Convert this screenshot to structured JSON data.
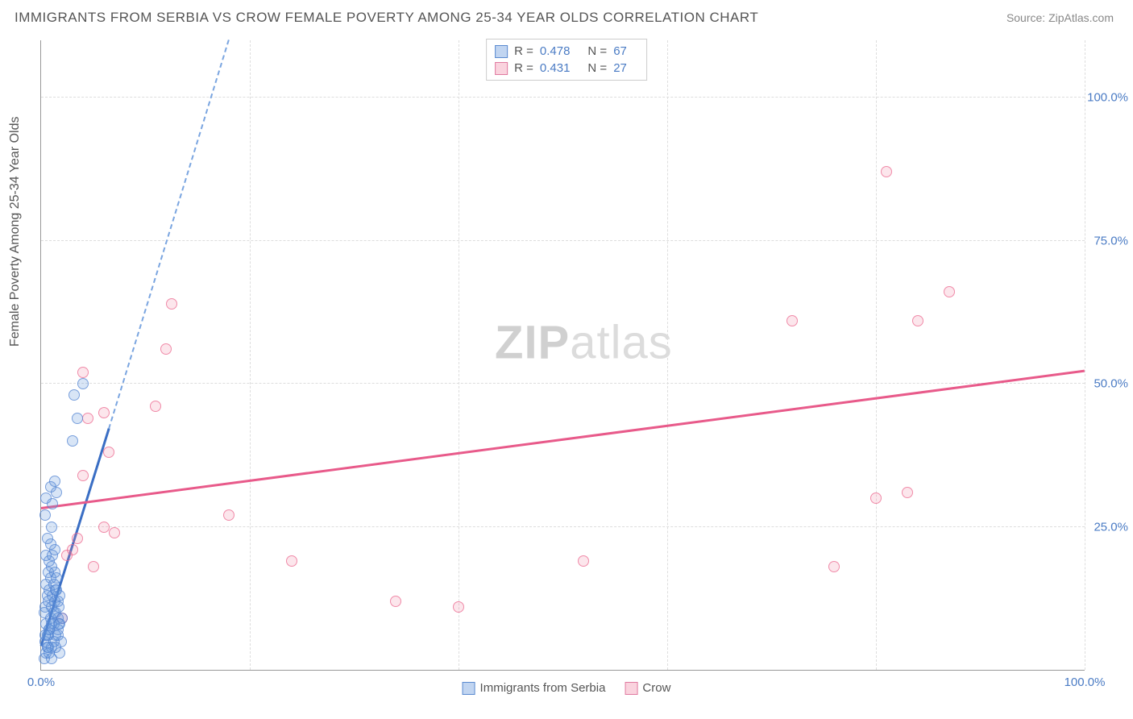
{
  "title": "IMMIGRANTS FROM SERBIA VS CROW FEMALE POVERTY AMONG 25-34 YEAR OLDS CORRELATION CHART",
  "source": "Source: ZipAtlas.com",
  "y_axis_label": "Female Poverty Among 25-34 Year Olds",
  "watermark_a": "ZIP",
  "watermark_b": "atlas",
  "chart": {
    "type": "scatter",
    "xlim": [
      0,
      100
    ],
    "ylim": [
      0,
      110
    ],
    "x_ticks": [
      0,
      20,
      40,
      60,
      80,
      100
    ],
    "y_ticks": [
      25,
      50,
      75,
      100
    ],
    "y_tick_labels": [
      "25.0%",
      "50.0%",
      "75.0%",
      "100.0%"
    ],
    "x_tick_labels_shown": [
      "0.0%",
      "100.0%"
    ],
    "grid_color": "#dddddd",
    "axis_color": "#999999",
    "background_color": "#ffffff",
    "label_color": "#4a7bc4",
    "title_fontsize": 17,
    "label_fontsize": 15
  },
  "legend_top": {
    "s1": {
      "r_label": "R =",
      "r": "0.478",
      "n_label": "N =",
      "n": "67",
      "color": "#5a8ad0",
      "fill": "rgba(100,150,220,0.4)"
    },
    "s2": {
      "r_label": "R =",
      "r": "0.431",
      "n_label": "N =",
      "n": "27",
      "color": "#e07aa0",
      "fill": "rgba(240,130,160,0.35)"
    }
  },
  "legend_bottom": {
    "s1": {
      "label": "Immigrants from Serbia",
      "color": "#5a8ad0",
      "fill": "rgba(100,150,220,0.4)"
    },
    "s2": {
      "label": "Crow",
      "color": "#e07aa0",
      "fill": "rgba(240,130,160,0.35)"
    }
  },
  "series": {
    "blue": {
      "name": "Immigrants from Serbia",
      "marker_color": "rgba(80,130,210,0.7)",
      "fill_color": "rgba(100,150,220,0.25)",
      "trend_color": "#3a6ec4",
      "trend_dash_color": "#7aa5e0",
      "trend": {
        "x1": 0,
        "y1": 4,
        "x2": 6.5,
        "y2": 42
      },
      "trend_dash": {
        "x1": 6.5,
        "y1": 42,
        "x2": 18,
        "y2": 110
      },
      "points": [
        [
          0.3,
          2
        ],
        [
          0.5,
          3
        ],
        [
          0.7,
          4
        ],
        [
          0.4,
          5
        ],
        [
          0.6,
          6
        ],
        [
          0.8,
          7
        ],
        [
          1.0,
          4
        ],
        [
          0.5,
          8
        ],
        [
          0.9,
          9
        ],
        [
          1.2,
          10
        ],
        [
          0.4,
          11
        ],
        [
          0.7,
          12
        ],
        [
          1.0,
          11
        ],
        [
          1.3,
          12
        ],
        [
          0.6,
          13
        ],
        [
          1.1,
          13
        ],
        [
          0.8,
          14
        ],
        [
          1.4,
          14
        ],
        [
          0.5,
          15
        ],
        [
          1.2,
          15
        ],
        [
          0.9,
          16
        ],
        [
          1.5,
          16
        ],
        [
          0.7,
          17
        ],
        [
          1.3,
          17
        ],
        [
          1.0,
          18
        ],
        [
          1.6,
          9
        ],
        [
          0.8,
          19
        ],
        [
          1.4,
          10
        ],
        [
          1.1,
          20
        ],
        [
          1.7,
          11
        ],
        [
          0.5,
          20
        ],
        [
          1.3,
          21
        ],
        [
          0.9,
          22
        ],
        [
          1.6,
          12
        ],
        [
          1.2,
          8
        ],
        [
          1.8,
          13
        ],
        [
          0.6,
          23
        ],
        [
          1.5,
          14
        ],
        [
          1.0,
          25
        ],
        [
          1.9,
          5
        ],
        [
          0.4,
          27
        ],
        [
          1.4,
          6
        ],
        [
          0.8,
          7
        ],
        [
          1.7,
          8
        ],
        [
          1.1,
          29
        ],
        [
          0.5,
          30
        ],
        [
          1.5,
          31
        ],
        [
          0.9,
          32
        ],
        [
          1.8,
          3
        ],
        [
          1.3,
          33
        ],
        [
          0.7,
          6
        ],
        [
          1.6,
          7
        ],
        [
          1.0,
          8
        ],
        [
          2.0,
          9
        ],
        [
          3.0,
          40
        ],
        [
          3.2,
          48
        ],
        [
          4.0,
          50
        ],
        [
          3.5,
          44
        ],
        [
          0.3,
          10
        ],
        [
          0.4,
          6
        ],
        [
          0.6,
          4
        ],
        [
          0.8,
          3
        ],
        [
          1.0,
          2
        ],
        [
          1.2,
          5
        ],
        [
          1.4,
          4
        ],
        [
          1.6,
          6
        ],
        [
          1.8,
          8
        ]
      ]
    },
    "pink": {
      "name": "Crow",
      "marker_color": "rgba(235,100,140,0.7)",
      "fill_color": "rgba(240,130,160,0.2)",
      "trend_color": "#e85a8a",
      "trend": {
        "x1": 0,
        "y1": 28,
        "x2": 100,
        "y2": 52
      },
      "points": [
        [
          2,
          9
        ],
        [
          2.5,
          20
        ],
        [
          3,
          21
        ],
        [
          3.5,
          23
        ],
        [
          5,
          18
        ],
        [
          6,
          25
        ],
        [
          7,
          24
        ],
        [
          4,
          34
        ],
        [
          6.5,
          38
        ],
        [
          6,
          45
        ],
        [
          4.5,
          44
        ],
        [
          4,
          52
        ],
        [
          11,
          46
        ],
        [
          12,
          56
        ],
        [
          12.5,
          64
        ],
        [
          18,
          27
        ],
        [
          24,
          19
        ],
        [
          34,
          12
        ],
        [
          40,
          11
        ],
        [
          52,
          19
        ],
        [
          76,
          18
        ],
        [
          72,
          61
        ],
        [
          80,
          30
        ],
        [
          83,
          31
        ],
        [
          84,
          61
        ],
        [
          87,
          66
        ],
        [
          81,
          87
        ]
      ]
    }
  }
}
